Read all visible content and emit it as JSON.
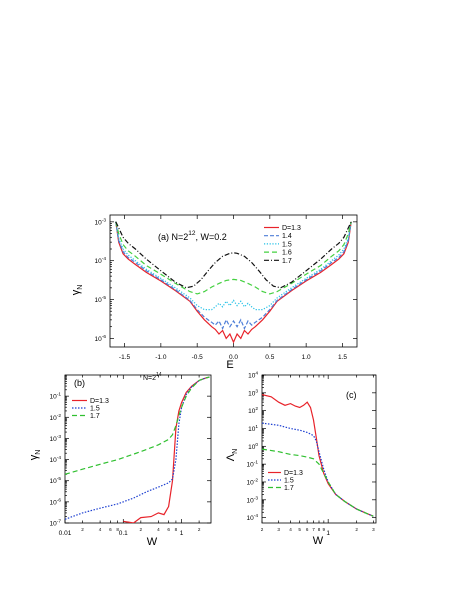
{
  "styles": {
    "D=1.3": {
      "color": "#e8232a",
      "dash": ""
    },
    "1.4": {
      "color": "#4f7fd8",
      "dash": "4,2"
    },
    "1.5": {
      "color": "#20c0e6",
      "dash": "1.2,1.6"
    },
    "1.6": {
      "color": "#44d040",
      "dash": "5,3"
    },
    "1.7": {
      "color": "#111111",
      "dash": "5,2,1,2"
    },
    "1.5b": {
      "color": "#1c3fd1",
      "dash": "1.5,1.5"
    },
    "1.7b": {
      "color": "#30c030",
      "dash": "5,3"
    }
  },
  "chart_data": [
    {
      "panel": "a",
      "type": "line",
      "annotation": {
        "label_prefix": "(a) N=2",
        "exponent": "12",
        "label_suffix": ", W=0.2"
      },
      "xlabel": "E",
      "ylabel": {
        "main": "γ",
        "sub": "N"
      },
      "xlim": [
        -1.7,
        1.7
      ],
      "ylim": [
        6e-07,
        0.0015
      ],
      "yscale": "log",
      "xticks": [
        "-1.5",
        "-1.0",
        "-0.5",
        "0.0",
        "0.5",
        "1.0",
        "1.5"
      ],
      "xtick_values": [
        -1.5,
        -1.0,
        -0.5,
        0.0,
        0.5,
        1.0,
        1.5
      ],
      "yticks": [
        {
          "base": "10",
          "exp": "-6"
        },
        {
          "base": "10",
          "exp": "-5"
        },
        {
          "base": "10",
          "exp": "-4"
        },
        {
          "base": "10",
          "exp": "-3"
        }
      ],
      "ytick_values": [
        1e-06,
        1e-05,
        0.0001,
        0.001
      ],
      "legend": {
        "position": "top-right"
      },
      "series": [
        {
          "name": "D=1.3",
          "style": "D=1.3",
          "x": [
            -1.62,
            -1.58,
            -1.52,
            -1.45,
            -1.35,
            -1.2,
            -1.0,
            -0.8,
            -0.6,
            -0.5,
            -0.4,
            -0.3,
            -0.25,
            -0.2,
            -0.15,
            -0.1,
            -0.05,
            0.0,
            0.05,
            0.1,
            0.15,
            0.2,
            0.25,
            0.3,
            0.4,
            0.5,
            0.6,
            0.8,
            1.0,
            1.2,
            1.35,
            1.45,
            1.52,
            1.58,
            1.62
          ],
          "y": [
            0.001,
            0.0003,
            0.00015,
            0.00011,
            8e-05,
            5e-05,
            3e-05,
            1.7e-05,
            9e-06,
            5e-06,
            3e-06,
            2e-06,
            1.7e-06,
            1.3e-06,
            1.6e-06,
            1e-06,
            1.3e-06,
            8e-07,
            1.3e-06,
            1e-06,
            1.6e-06,
            1.3e-06,
            1.7e-06,
            2e-06,
            3e-06,
            5e-06,
            9e-06,
            1.7e-05,
            3e-05,
            5e-05,
            8e-05,
            0.00011,
            0.00015,
            0.0003,
            0.001
          ]
        },
        {
          "name": "1.4",
          "style": "1.4",
          "x": [
            -1.62,
            -1.58,
            -1.52,
            -1.45,
            -1.35,
            -1.2,
            -1.0,
            -0.8,
            -0.6,
            -0.5,
            -0.4,
            -0.3,
            -0.25,
            -0.2,
            -0.15,
            -0.1,
            -0.05,
            0.0,
            0.05,
            0.1,
            0.15,
            0.2,
            0.25,
            0.3,
            0.4,
            0.5,
            0.6,
            0.8,
            1.0,
            1.2,
            1.35,
            1.45,
            1.52,
            1.58,
            1.62
          ],
          "y": [
            0.001,
            0.00033,
            0.00017,
            0.00012,
            9e-05,
            5.5e-05,
            3.2e-05,
            1.8e-05,
            9.5e-06,
            5.5e-06,
            3.5e-06,
            2.6e-06,
            2.2e-06,
            2.8e-06,
            1.8e-06,
            3e-06,
            2e-06,
            2.8e-06,
            2e-06,
            3e-06,
            1.8e-06,
            2.8e-06,
            2.2e-06,
            2.6e-06,
            3.5e-06,
            5.5e-06,
            9.5e-06,
            1.8e-05,
            3.2e-05,
            5.5e-05,
            9e-05,
            0.00012,
            0.00017,
            0.00033,
            0.001
          ]
        },
        {
          "name": "1.5",
          "style": "1.5",
          "x": [
            -1.62,
            -1.58,
            -1.52,
            -1.45,
            -1.35,
            -1.2,
            -1.0,
            -0.8,
            -0.6,
            -0.5,
            -0.4,
            -0.3,
            -0.25,
            -0.2,
            -0.15,
            -0.1,
            -0.05,
            0.0,
            0.05,
            0.1,
            0.15,
            0.2,
            0.25,
            0.3,
            0.4,
            0.5,
            0.6,
            0.8,
            1.0,
            1.2,
            1.35,
            1.45,
            1.52,
            1.58,
            1.62
          ],
          "y": [
            0.001,
            0.00038,
            0.0002,
            0.00014,
            0.0001,
            6e-05,
            3.5e-05,
            2e-05,
            1.1e-05,
            7e-06,
            5.5e-06,
            5.5e-06,
            6.5e-06,
            8e-06,
            6.5e-06,
            9e-06,
            7e-06,
            9.5e-06,
            7e-06,
            9e-06,
            6.5e-06,
            8e-06,
            6.5e-06,
            5.5e-06,
            5.5e-06,
            7e-06,
            1.1e-05,
            2e-05,
            3.5e-05,
            6e-05,
            0.0001,
            0.00014,
            0.0002,
            0.00038,
            0.001
          ]
        },
        {
          "name": "1.6",
          "style": "1.6",
          "x": [
            -1.62,
            -1.58,
            -1.52,
            -1.45,
            -1.35,
            -1.2,
            -1.0,
            -0.8,
            -0.6,
            -0.5,
            -0.4,
            -0.3,
            -0.2,
            -0.1,
            0.0,
            0.1,
            0.2,
            0.3,
            0.4,
            0.5,
            0.6,
            0.8,
            1.0,
            1.2,
            1.35,
            1.45,
            1.52,
            1.58,
            1.62
          ],
          "y": [
            0.001,
            0.0005,
            0.00026,
            0.00018,
            0.00013,
            7.5e-05,
            4.5e-05,
            2.6e-05,
            1.6e-05,
            1.4e-05,
            1.6e-05,
            2.1e-05,
            2.6e-05,
            3.1e-05,
            3.3e-05,
            3.1e-05,
            2.6e-05,
            2.1e-05,
            1.6e-05,
            1.4e-05,
            1.6e-05,
            2.6e-05,
            4.5e-05,
            7.5e-05,
            0.00013,
            0.00018,
            0.00026,
            0.0005,
            0.001
          ]
        },
        {
          "name": "1.7",
          "style": "1.7",
          "x": [
            -1.62,
            -1.58,
            -1.52,
            -1.45,
            -1.35,
            -1.2,
            -1.0,
            -0.8,
            -0.65,
            -0.55,
            -0.45,
            -0.35,
            -0.25,
            -0.15,
            -0.05,
            0.0,
            0.05,
            0.15,
            0.25,
            0.35,
            0.45,
            0.55,
            0.65,
            0.8,
            1.0,
            1.2,
            1.35,
            1.45,
            1.52,
            1.58,
            1.62
          ],
          "y": [
            0.001,
            0.0007,
            0.0004,
            0.00028,
            0.0002,
            0.00011,
            5.5e-05,
            2.8e-05,
            2e-05,
            2.2e-05,
            3.2e-05,
            5.5e-05,
            9e-05,
            0.00013,
            0.000155,
            0.00016,
            0.000155,
            0.00013,
            9e-05,
            5.5e-05,
            3.2e-05,
            2.2e-05,
            2e-05,
            2.8e-05,
            5.5e-05,
            0.00011,
            0.0002,
            0.00028,
            0.0004,
            0.0007,
            0.001
          ]
        }
      ]
    },
    {
      "panel": "b",
      "type": "line",
      "annotation": {
        "panel_label": "(b)",
        "n_prefix": "N=2",
        "n_exp": "14"
      },
      "xlabel": "W",
      "ylabel": {
        "main": "γ",
        "sub": "N"
      },
      "xscale": "log",
      "yscale": "log",
      "xlim": [
        0.01,
        3.2
      ],
      "ylim": [
        1e-07,
        1.0
      ],
      "xticks": [
        "0.01",
        "0.1",
        "1"
      ],
      "xtick_values": [
        0.01,
        0.1,
        1
      ],
      "minor_tick_labels": [
        {
          "value": 0.02,
          "label": "2"
        },
        {
          "value": 0.04,
          "label": "4"
        },
        {
          "value": 0.06,
          "label": "6"
        },
        {
          "value": 0.08,
          "label": "8"
        },
        {
          "value": 0.2,
          "label": "2"
        },
        {
          "value": 0.4,
          "label": "4"
        },
        {
          "value": 0.6,
          "label": "6"
        },
        {
          "value": 0.8,
          "label": "8"
        },
        {
          "value": 2,
          "label": "2"
        }
      ],
      "yticks": [
        {
          "base": "10",
          "exp": "-7"
        },
        {
          "base": "10",
          "exp": "-6"
        },
        {
          "base": "10",
          "exp": "-5"
        },
        {
          "base": "10",
          "exp": "-4"
        },
        {
          "base": "10",
          "exp": "-3"
        },
        {
          "base": "10",
          "exp": "-2"
        },
        {
          "base": "10",
          "exp": "-1"
        }
      ],
      "ytick_values": [
        1e-07,
        1e-06,
        1e-05,
        0.0001,
        0.001,
        0.01,
        0.1
      ],
      "legend": {
        "position": "top-left"
      },
      "series": [
        {
          "name": "D=1.3",
          "style": "D=1.3",
          "x": [
            0.1,
            0.15,
            0.2,
            0.3,
            0.4,
            0.5,
            0.6,
            0.7,
            0.8,
            0.9,
            1.0,
            1.2,
            1.5,
            2.0,
            2.5,
            3.0
          ],
          "y": [
            1.2e-07,
            1e-07,
            1.8e-07,
            2e-07,
            3e-07,
            2.5e-07,
            6e-07,
            1e-05,
            0.003,
            0.02,
            0.05,
            0.15,
            0.3,
            0.55,
            0.7,
            0.8
          ]
        },
        {
          "name": "1.5",
          "style": "1.5b",
          "x": [
            0.01,
            0.02,
            0.04,
            0.08,
            0.15,
            0.25,
            0.4,
            0.6,
            0.7,
            0.8,
            0.9,
            1.0,
            1.2,
            1.5,
            2.0,
            2.5,
            3.0
          ],
          "y": [
            1.5e-07,
            3e-07,
            5e-07,
            8e-07,
            1.5e-06,
            3e-06,
            5e-06,
            8e-06,
            1.2e-05,
            0.0001,
            0.005,
            0.03,
            0.12,
            0.28,
            0.55,
            0.7,
            0.8
          ]
        },
        {
          "name": "1.7",
          "style": "1.7b",
          "x": [
            0.01,
            0.02,
            0.04,
            0.08,
            0.15,
            0.25,
            0.4,
            0.6,
            0.7,
            0.8,
            0.9,
            1.0,
            1.2,
            1.5,
            2.0,
            2.5,
            3.0
          ],
          "y": [
            2e-05,
            3.5e-05,
            6e-05,
            0.0001,
            0.00018,
            0.0003,
            0.0005,
            0.0009,
            0.0015,
            0.004,
            0.012,
            0.03,
            0.1,
            0.25,
            0.55,
            0.7,
            0.8
          ]
        }
      ]
    },
    {
      "panel": "c",
      "type": "line",
      "annotation": {
        "panel_label": "(c)"
      },
      "xlabel": "W",
      "ylabel": {
        "main": "Λ",
        "sub": "N"
      },
      "xscale": "log",
      "yscale": "log",
      "xlim": [
        0.2,
        3.2
      ],
      "ylim": [
        5e-05,
        10000.0
      ],
      "xticks": [
        "1"
      ],
      "xtick_values": [
        1
      ],
      "minor_tick_labels": [
        {
          "value": 0.2,
          "label": "2"
        },
        {
          "value": 0.3,
          "label": "3"
        },
        {
          "value": 0.4,
          "label": "4"
        },
        {
          "value": 0.5,
          "label": "5"
        },
        {
          "value": 0.6,
          "label": "6"
        },
        {
          "value": 0.7,
          "label": "7"
        },
        {
          "value": 0.8,
          "label": "8"
        },
        {
          "value": 0.9,
          "label": "9"
        },
        {
          "value": 2,
          "label": "2"
        },
        {
          "value": 3,
          "label": "3"
        }
      ],
      "yticks": [
        {
          "base": "10",
          "exp": "-4"
        },
        {
          "base": "10",
          "exp": "-3"
        },
        {
          "base": "10",
          "exp": "-2"
        },
        {
          "base": "10",
          "exp": "-1"
        },
        {
          "base": "10",
          "exp": "0"
        },
        {
          "base": "10",
          "exp": "1"
        },
        {
          "base": "10",
          "exp": "2"
        },
        {
          "base": "10",
          "exp": "3"
        },
        {
          "base": "10",
          "exp": "4"
        }
      ],
      "ytick_values": [
        0.0001,
        0.001,
        0.01,
        0.1,
        1,
        10,
        100,
        1000,
        10000
      ],
      "legend": {
        "position": "bottom-left"
      },
      "series": [
        {
          "name": "D=1.3",
          "style": "D=1.3",
          "x": [
            0.2,
            0.25,
            0.3,
            0.35,
            0.4,
            0.45,
            0.5,
            0.55,
            0.6,
            0.65,
            0.7,
            0.75,
            0.8,
            0.9,
            1.0,
            1.2,
            1.5,
            2.0,
            2.5,
            3.0
          ],
          "y": [
            800,
            600,
            300,
            200,
            250,
            180,
            150,
            200,
            300,
            150,
            30,
            3,
            0.3,
            0.03,
            0.008,
            0.002,
            0.0008,
            0.0003,
            0.00018,
            0.00012
          ]
        },
        {
          "name": "1.5",
          "style": "1.5b",
          "x": [
            0.2,
            0.3,
            0.4,
            0.5,
            0.6,
            0.7,
            0.75,
            0.8,
            0.9,
            1.0,
            1.2,
            1.5,
            2.0,
            2.5,
            3.0
          ],
          "y": [
            20,
            15,
            10,
            8,
            6,
            4,
            2,
            0.5,
            0.05,
            0.01,
            0.002,
            0.0008,
            0.0003,
            0.00018,
            0.00012
          ]
        },
        {
          "name": "1.7",
          "style": "1.7b",
          "x": [
            0.2,
            0.3,
            0.4,
            0.5,
            0.6,
            0.7,
            0.8,
            0.9,
            1.0,
            1.2,
            1.5,
            2.0,
            2.5,
            3.0
          ],
          "y": [
            0.7,
            0.5,
            0.35,
            0.3,
            0.25,
            0.2,
            0.1,
            0.03,
            0.01,
            0.002,
            0.0008,
            0.0003,
            0.00018,
            0.00012
          ]
        }
      ]
    }
  ]
}
